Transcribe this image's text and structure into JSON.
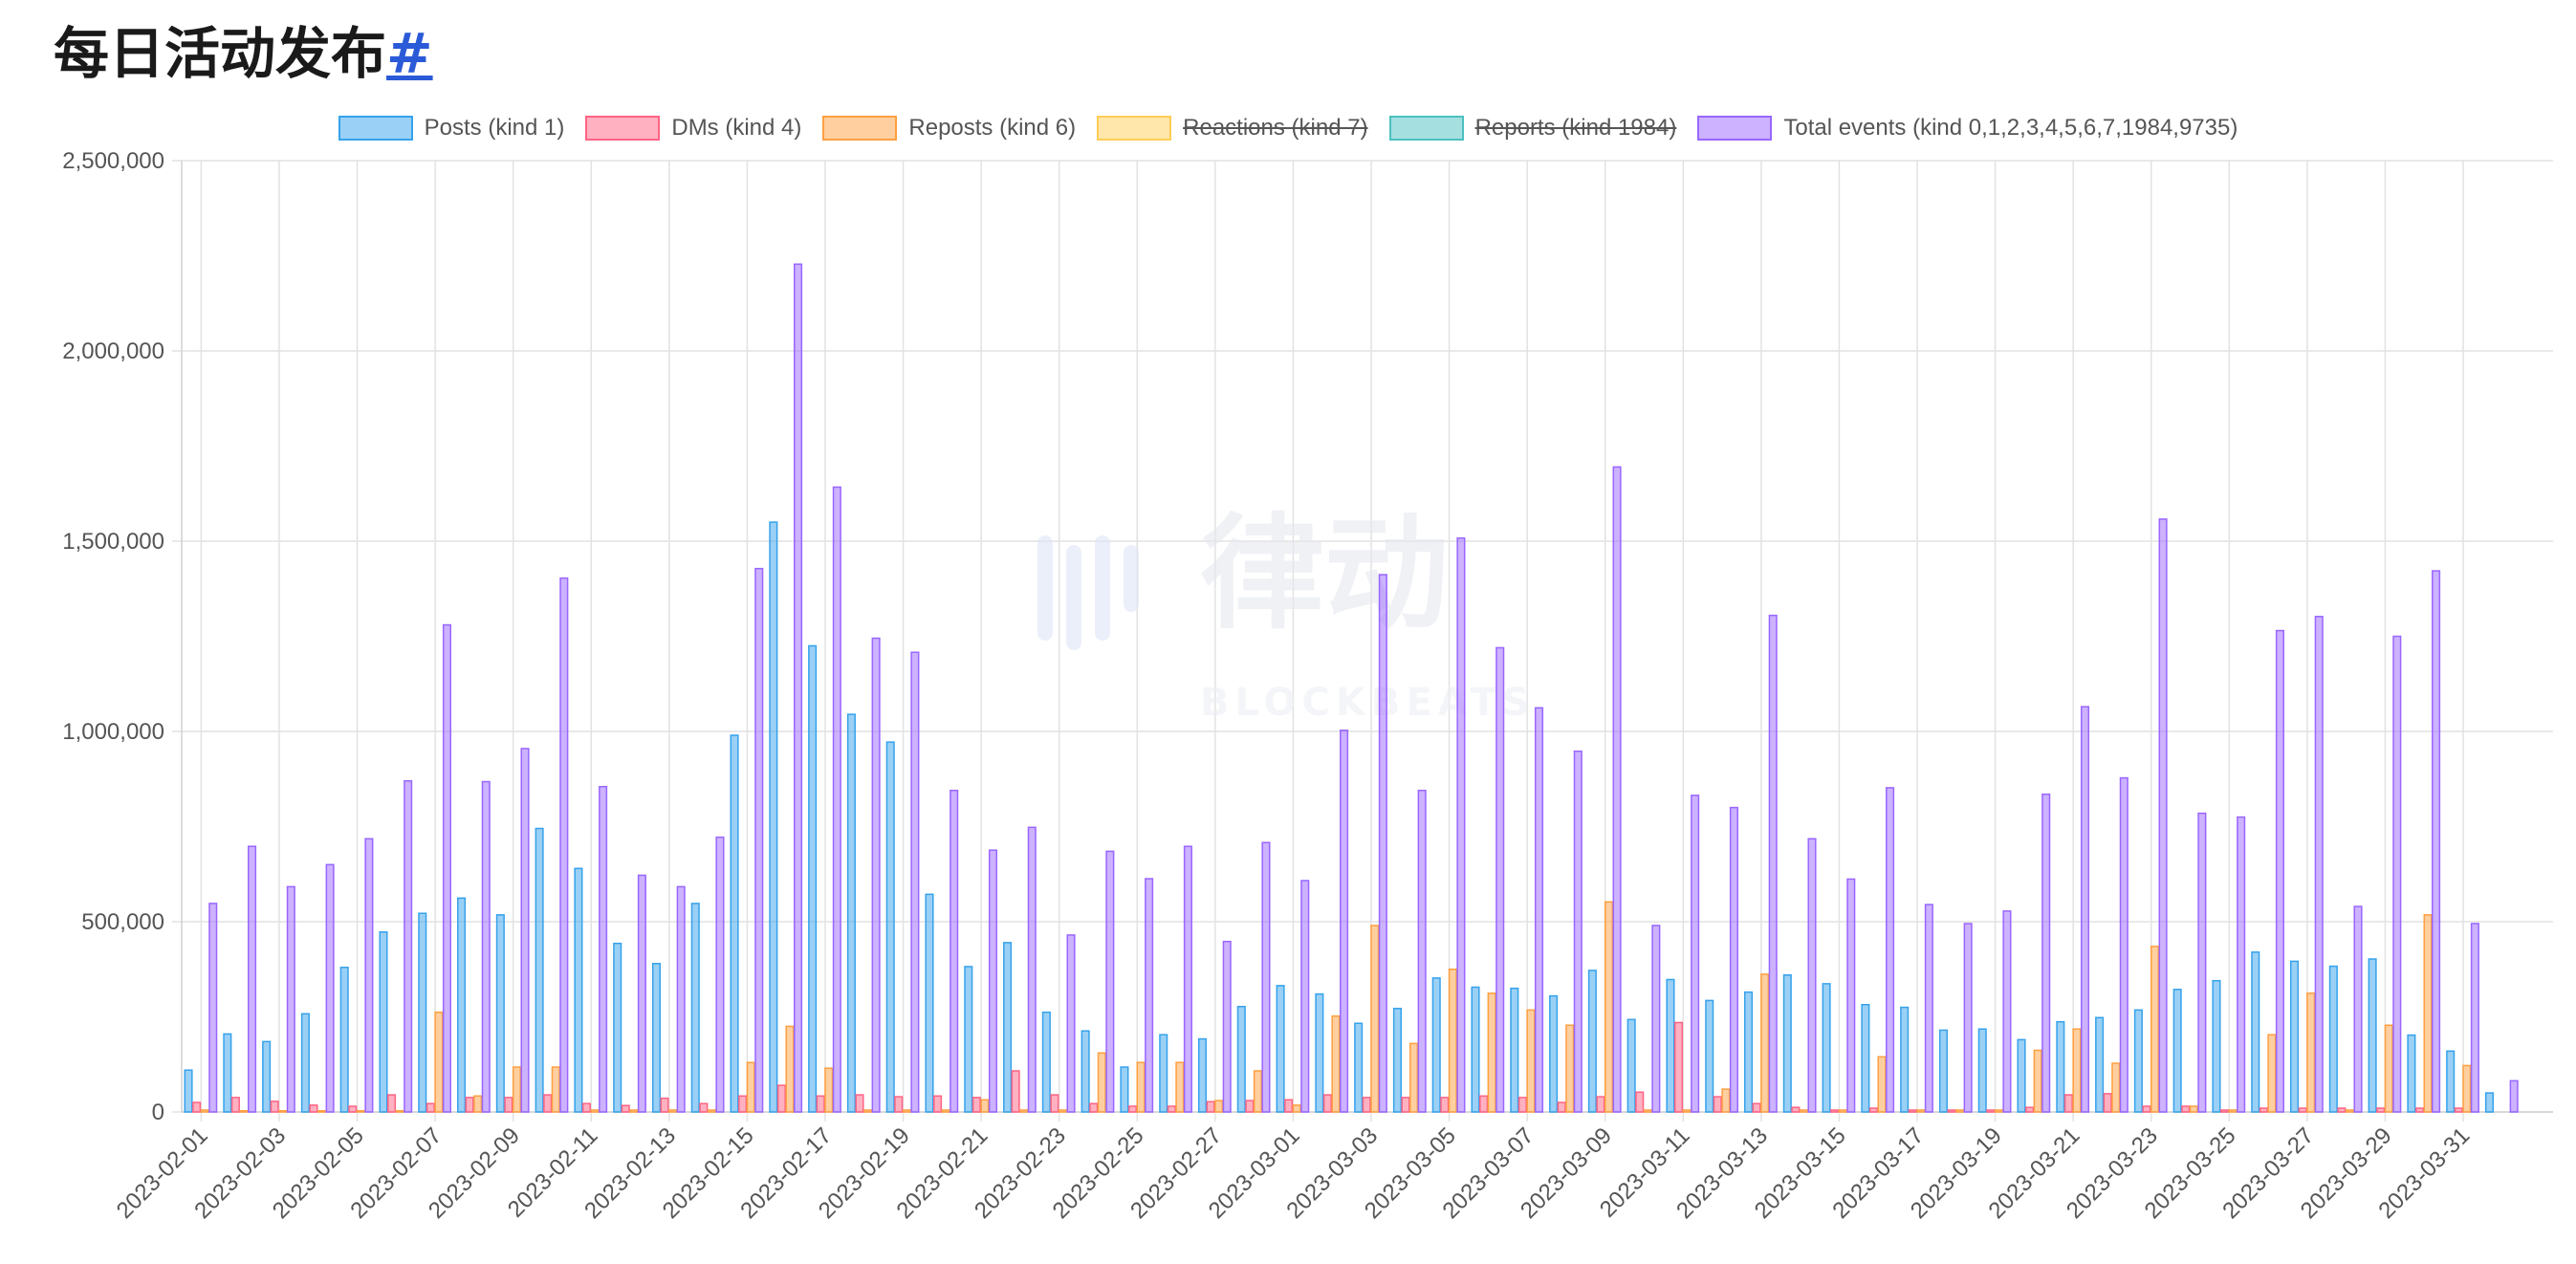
{
  "page": {
    "title": "每日活动发布",
    "title_anchor": "#"
  },
  "watermark": {
    "brand_cn": "律动",
    "brand_en": "BLOCKBEATS"
  },
  "colors": {
    "posts": "#36a2eb",
    "dms": "#ff6384",
    "reposts": "#ff9f40",
    "reactions": "#ffcd56",
    "reports": "#4bc0c0",
    "total": "#9966ff",
    "grid": "#e2e2e2"
  },
  "chart_data": {
    "type": "bar",
    "title": "",
    "xlabel": "",
    "ylabel": "",
    "ylim": [
      0,
      2500000
    ],
    "y_ticks": [
      "0",
      "500,000",
      "1,000,000",
      "1,500,000",
      "2,000,000",
      "2,500,000"
    ],
    "grid": true,
    "legend_position": "top-center",
    "categories": [
      "2023-02-01",
      "2023-02-02",
      "2023-02-03",
      "2023-02-04",
      "2023-02-05",
      "2023-02-06",
      "2023-02-07",
      "2023-02-08",
      "2023-02-09",
      "2023-02-10",
      "2023-02-11",
      "2023-02-12",
      "2023-02-13",
      "2023-02-14",
      "2023-02-15",
      "2023-02-16",
      "2023-02-17",
      "2023-02-18",
      "2023-02-19",
      "2023-02-20",
      "2023-02-21",
      "2023-02-22",
      "2023-02-23",
      "2023-02-24",
      "2023-02-25",
      "2023-02-26",
      "2023-02-27",
      "2023-02-28",
      "2023-03-01",
      "2023-03-02",
      "2023-03-03",
      "2023-03-04",
      "2023-03-05",
      "2023-03-06",
      "2023-03-07",
      "2023-03-08",
      "2023-03-09",
      "2023-03-10",
      "2023-03-11",
      "2023-03-12",
      "2023-03-13",
      "2023-03-14",
      "2023-03-15",
      "2023-03-16",
      "2023-03-17",
      "2023-03-18",
      "2023-03-19",
      "2023-03-20",
      "2023-03-21",
      "2023-03-22",
      "2023-03-23",
      "2023-03-24",
      "2023-03-25",
      "2023-03-26",
      "2023-03-27",
      "2023-03-28",
      "2023-03-29",
      "2023-03-30",
      "2023-03-31",
      "2023-04-01",
      "2023-04-02"
    ],
    "x_tick_labels": [
      "2023-02-01",
      "2023-02-03",
      "2023-02-05",
      "2023-02-07",
      "2023-02-09",
      "2023-02-11",
      "2023-02-13",
      "2023-02-15",
      "2023-02-17",
      "2023-02-19",
      "2023-02-21",
      "2023-02-23",
      "2023-02-25",
      "2023-02-27",
      "2023-03-01",
      "2023-03-03",
      "2023-03-05",
      "2023-03-07",
      "2023-03-09",
      "2023-03-11",
      "2023-03-13",
      "2023-03-15",
      "2023-03-17",
      "2023-03-19",
      "2023-03-21",
      "2023-03-23",
      "2023-03-25",
      "2023-03-27",
      "2023-03-29",
      "2023-03-31"
    ],
    "series": [
      {
        "name": "Posts (kind 1)",
        "key": "posts",
        "hidden": false,
        "values": [
          110000,
          205000,
          185000,
          258000,
          380000,
          473000,
          522000,
          562000,
          518000,
          745000,
          640000,
          443000,
          390000,
          548000,
          990000,
          1550000,
          1225000,
          1045000,
          972000,
          572000,
          382000,
          445000,
          262000,
          213000,
          118000,
          203000,
          192000,
          277000,
          332000,
          310000,
          233000,
          272000,
          352000,
          328000,
          325000,
          305000,
          372000,
          243000,
          348000,
          293000,
          315000,
          360000,
          337000,
          282000,
          275000,
          215000,
          218000,
          190000,
          237000,
          248000,
          268000,
          322000,
          345000,
          420000,
          396000,
          383000,
          402000,
          202000,
          160000,
          50000,
          0
        ]
      },
      {
        "name": "DMs (kind 4)",
        "key": "dms",
        "hidden": false,
        "values": [
          25000,
          38000,
          28000,
          18000,
          15000,
          45000,
          22000,
          38000,
          38000,
          45000,
          22000,
          17000,
          36000,
          22000,
          42000,
          70000,
          42000,
          45000,
          40000,
          42000,
          38000,
          108000,
          45000,
          22000,
          15000,
          15000,
          27000,
          30000,
          32000,
          45000,
          38000,
          38000,
          38000,
          42000,
          38000,
          25000,
          40000,
          52000,
          235000,
          40000,
          22000,
          12000,
          5000,
          10000,
          5000,
          5000,
          5000,
          12000,
          45000,
          48000,
          15000,
          15000,
          5000,
          10000,
          10000,
          10000,
          10000,
          10000,
          10000,
          0,
          0
        ]
      },
      {
        "name": "Reposts (kind 6)",
        "key": "reposts",
        "hidden": false,
        "values": [
          5000,
          3000,
          3000,
          3000,
          3000,
          3000,
          262000,
          42000,
          118000,
          118000,
          5000,
          5000,
          5000,
          5000,
          130000,
          225000,
          115000,
          5000,
          5000,
          5000,
          32000,
          5000,
          5000,
          155000,
          130000,
          130000,
          30000,
          108000,
          18000,
          252000,
          490000,
          180000,
          375000,
          312000,
          268000,
          228000,
          552000,
          5000,
          5000,
          60000,
          362000,
          5000,
          5000,
          145000,
          5000,
          5000,
          5000,
          162000,
          218000,
          128000,
          435000,
          15000,
          5000,
          203000,
          312000,
          5000,
          228000,
          518000,
          122000,
          0,
          0
        ]
      },
      {
        "name": "Reactions (kind 7)",
        "key": "reactions",
        "hidden": true,
        "values": [
          0,
          0,
          0,
          0,
          0,
          0,
          0,
          0,
          0,
          0,
          0,
          0,
          0,
          0,
          0,
          0,
          0,
          0,
          0,
          0,
          0,
          0,
          0,
          0,
          0,
          0,
          0,
          0,
          0,
          0,
          0,
          0,
          0,
          0,
          0,
          0,
          0,
          0,
          0,
          0,
          0,
          0,
          0,
          0,
          0,
          0,
          0,
          0,
          0,
          0,
          0,
          0,
          0,
          0,
          0,
          0,
          0,
          0,
          0,
          0,
          0
        ]
      },
      {
        "name": "Reports (kind 1984)",
        "key": "reports",
        "hidden": true,
        "values": [
          0,
          0,
          0,
          0,
          0,
          0,
          0,
          0,
          0,
          0,
          0,
          0,
          0,
          0,
          0,
          0,
          0,
          0,
          0,
          0,
          0,
          0,
          0,
          0,
          0,
          0,
          0,
          0,
          0,
          0,
          0,
          0,
          0,
          0,
          0,
          0,
          0,
          0,
          0,
          0,
          0,
          0,
          0,
          0,
          0,
          0,
          0,
          0,
          0,
          0,
          0,
          0,
          0,
          0,
          0,
          0,
          0,
          0,
          0,
          0,
          0
        ]
      },
      {
        "name": "Total events (kind 0,1,2,3,4,5,6,7,1984,9735)",
        "key": "total",
        "hidden": false,
        "values": [
          548000,
          698000,
          592000,
          650000,
          718000,
          870000,
          1280000,
          868000,
          955000,
          1403000,
          855000,
          622000,
          592000,
          722000,
          1428000,
          2228000,
          1642000,
          1245000,
          1208000,
          845000,
          688000,
          748000,
          465000,
          685000,
          613000,
          698000,
          448000,
          708000,
          608000,
          1003000,
          1412000,
          845000,
          1508000,
          1220000,
          1062000,
          948000,
          1695000,
          490000,
          832000,
          800000,
          1305000,
          718000,
          612000,
          852000,
          545000,
          495000,
          528000,
          835000,
          1065000,
          878000,
          1558000,
          785000,
          775000,
          1265000,
          1302000,
          540000,
          1250000,
          1422000,
          495000,
          82000,
          0
        ]
      }
    ]
  }
}
